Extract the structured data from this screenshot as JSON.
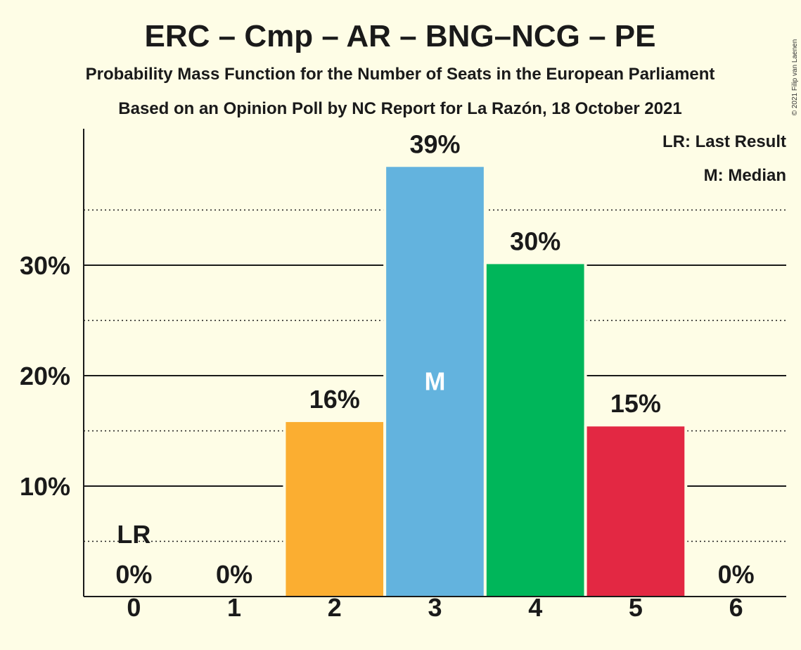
{
  "chart_data": {
    "type": "bar",
    "title": "ERC – Cmp – AR – BNG–NCG – PE",
    "subtitle": "Probability Mass Function for the Number of Seats in the European Parliament",
    "subtitle2": "Based on an Opinion Poll by NC Report for La Razón, 18 October 2021",
    "copyright": "© 2021 Filip van Laenen",
    "categories": [
      "0",
      "1",
      "2",
      "3",
      "4",
      "5",
      "6"
    ],
    "values": [
      0,
      0,
      15.8,
      38.9,
      30.1,
      15.4,
      0
    ],
    "value_labels": [
      "0%",
      "0%",
      "16%",
      "39%",
      "30%",
      "15%",
      "0%"
    ],
    "bar_colors": [
      "#b0b0b0",
      "#b0b0b0",
      "#fbae31",
      "#63b3de",
      "#00b65a",
      "#e32843",
      "#b0b0b0"
    ],
    "ylim": [
      0,
      42
    ],
    "yticks": [
      10,
      20,
      30
    ],
    "ytick_labels": [
      "10%",
      "20%",
      "30%"
    ],
    "minor_gridlines": [
      5,
      15,
      25,
      35
    ],
    "last_result_index": 0,
    "last_result_label": "LR",
    "median_index": 3,
    "median_label": "M",
    "legend": [
      "LR: Last Result",
      "M: Median"
    ],
    "legend_position": "top-right",
    "grid": true
  }
}
